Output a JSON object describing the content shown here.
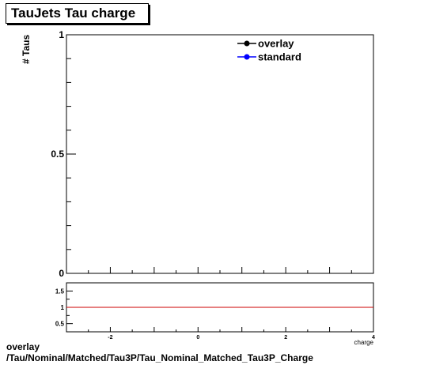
{
  "chart_data": [
    {
      "type": "line",
      "title": "TauJets Tau charge",
      "ylabel": "# Taus",
      "xlim": [
        -3,
        4
      ],
      "ylim": [
        0,
        1
      ],
      "y_tick_labels": [
        "0",
        "0.5",
        "1"
      ],
      "legend_position": "top-right",
      "series": [
        {
          "name": "overlay",
          "color": "#000000",
          "x": [],
          "y": []
        },
        {
          "name": "standard",
          "color": "#0000ff",
          "x": [],
          "y": []
        }
      ]
    },
    {
      "type": "line",
      "xlabel": "charge",
      "xlim": [
        -3,
        4
      ],
      "ylim": [
        0.25,
        1.75
      ],
      "x_tick_labels": [
        "-2",
        "0",
        "2",
        "4"
      ],
      "y_tick_labels": [
        "0.5",
        "1",
        "1.5"
      ],
      "reference_line": {
        "y": 1,
        "color": "#cc0000"
      },
      "series": []
    }
  ],
  "footer": {
    "line1": "overlay",
    "line2": "/Tau/Nominal/Matched/Tau3P/Tau_Nominal_Matched_Tau3P_Charge"
  }
}
